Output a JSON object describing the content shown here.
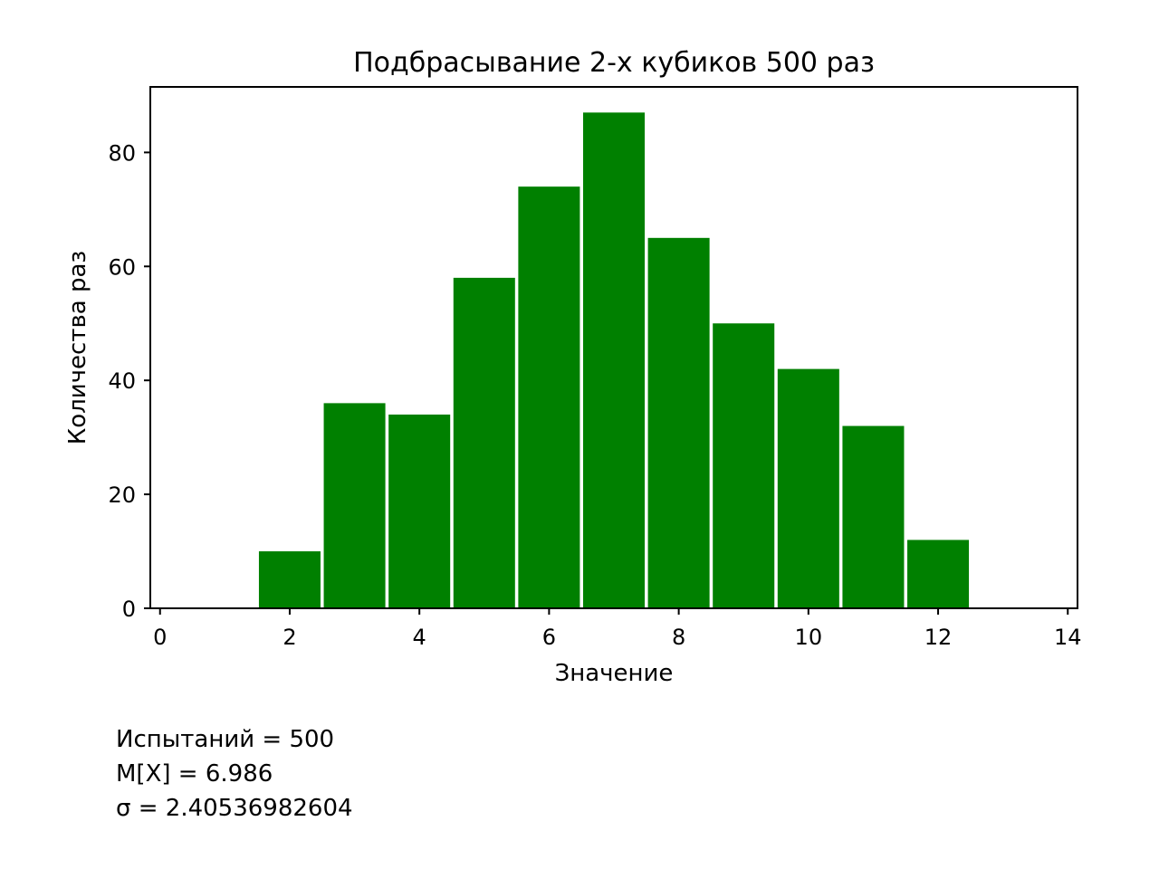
{
  "chart_data": {
    "type": "bar",
    "title": "Подбрасывание 2-х кубиков 500 раз",
    "xlabel": "Значение",
    "ylabel": "Количества раз",
    "x": [
      2,
      3,
      4,
      5,
      6,
      7,
      8,
      9,
      10,
      11,
      12
    ],
    "values": [
      10,
      36,
      34,
      58,
      74,
      87,
      65,
      50,
      42,
      32,
      12
    ],
    "bar_width": 0.95,
    "xlim": [
      -0.15,
      14.15
    ],
    "ylim": [
      0,
      91.5
    ],
    "xticks": [
      0,
      2,
      4,
      6,
      8,
      10,
      12,
      14
    ],
    "yticks": [
      0,
      20,
      40,
      60,
      80
    ],
    "bar_color": "#008000",
    "grid": false,
    "legend": "none"
  },
  "stats": {
    "trials": "Испытаний = 500",
    "mean": "M[X] = 6.986",
    "sigma": "σ = 2.40536982604"
  }
}
